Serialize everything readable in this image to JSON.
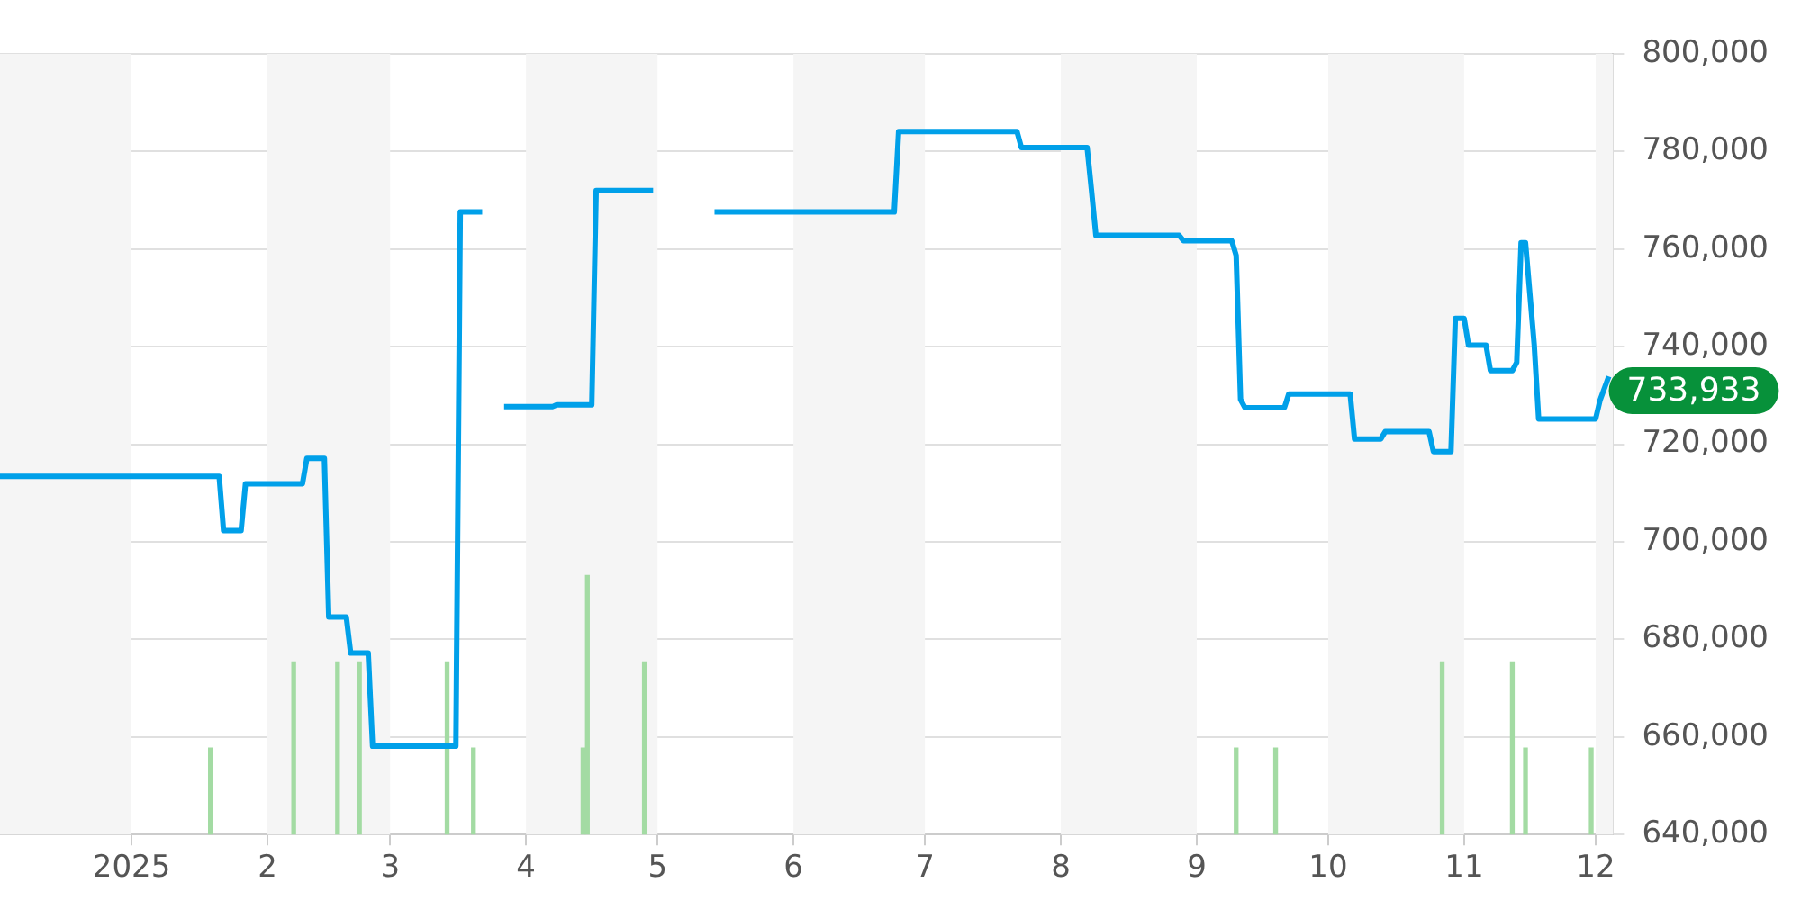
{
  "chart_data": {
    "type": "line",
    "x": [
      "2024-12-02",
      "2025-01-21",
      "2025-01-22",
      "2025-01-26",
      "2025-01-27",
      "2025-02-09",
      "2025-02-10",
      "2025-02-14",
      "2025-02-15",
      "2025-02-19",
      "2025-02-20",
      "2025-02-24",
      "2025-02-25",
      "2025-03-16",
      "2025-03-17",
      "2025-03-22",
      "2025-03-24",
      "2025-03-27",
      "2025-04-07",
      "2025-04-08",
      "2025-04-16",
      "2025-04-17",
      "2025-04-30",
      "2025-05-07",
      "2025-05-14",
      "2025-06-24",
      "2025-06-25",
      "2025-07-22",
      "2025-07-23",
      "2025-08-07",
      "2025-08-08",
      "2025-08-09",
      "2025-08-28",
      "2025-08-29",
      "2025-09-09",
      "2025-09-10",
      "2025-09-11",
      "2025-09-12",
      "2025-09-21",
      "2025-09-22",
      "2025-10-06",
      "2025-10-07",
      "2025-10-13",
      "2025-10-14",
      "2025-10-24",
      "2025-10-25",
      "2025-10-29",
      "2025-10-30",
      "2025-11-01",
      "2025-11-02",
      "2025-11-06",
      "2025-11-07",
      "2025-11-12",
      "2025-11-13",
      "2025-11-14",
      "2025-11-15",
      "2025-11-17",
      "2025-11-18",
      "2025-12-01",
      "2025-12-02",
      "2025-12-04"
    ],
    "series": [
      {
        "color": "#00a0e9",
        "values": [
          713400,
          713400,
          702300,
          702300,
          711900,
          711900,
          717100,
          717100,
          684600,
          684600,
          677200,
          677200,
          658100,
          658100,
          767600,
          767600,
          null,
          727700,
          727700,
          728100,
          728100,
          772000,
          772000,
          null,
          767600,
          767600,
          784100,
          784100,
          780800,
          780800,
          772000,
          762800,
          762800,
          761700,
          761700,
          758700,
          729200,
          727500,
          727500,
          730300,
          730300,
          721100,
          721100,
          722600,
          722600,
          718500,
          718500,
          745800,
          745800,
          740300,
          740300,
          735100,
          735100,
          736800,
          761300,
          761300,
          740300,
          725200,
          725200,
          729000,
          733900
        ]
      },
      {
        "type": "bar",
        "color": "#a3dba3",
        "x": [
          "2025-01-19",
          "2025-02-07",
          "2025-02-17",
          "2025-02-22",
          "2025-03-14",
          "2025-03-20",
          "2025-04-14",
          "2025-04-15",
          "2025-04-28",
          "2025-09-10",
          "2025-09-19",
          "2025-10-27",
          "2025-11-12",
          "2025-11-15",
          "2025-11-30"
        ],
        "values": [
          657700,
          675400,
          675400,
          675400,
          675400,
          657700,
          657700,
          693100,
          675400,
          657700,
          657700,
          675400,
          675400,
          657700,
          657700
        ]
      }
    ],
    "xlim": [
      "2024-12-02",
      "2025-12-05"
    ],
    "xticks": [
      {
        "value": "2025-01-01",
        "label": "2025"
      },
      {
        "value": "2025-02-01",
        "label": "2"
      },
      {
        "value": "2025-03-01",
        "label": "3"
      },
      {
        "value": "2025-04-01",
        "label": "4"
      },
      {
        "value": "2025-05-01",
        "label": "5"
      },
      {
        "value": "2025-06-01",
        "label": "6"
      },
      {
        "value": "2025-07-01",
        "label": "7"
      },
      {
        "value": "2025-08-01",
        "label": "8"
      },
      {
        "value": "2025-09-01",
        "label": "9"
      },
      {
        "value": "2025-10-01",
        "label": "10"
      },
      {
        "value": "2025-11-01",
        "label": "11"
      },
      {
        "value": "2025-12-01",
        "label": "12"
      }
    ],
    "ylim": [
      640000,
      800000
    ],
    "yticks": [
      {
        "value": 640000,
        "label": "640,000"
      },
      {
        "value": 660000,
        "label": "660,000"
      },
      {
        "value": 680000,
        "label": "680,000"
      },
      {
        "value": 700000,
        "label": "700,000"
      },
      {
        "value": 720000,
        "label": "720,000"
      },
      {
        "value": 740000,
        "label": "740,000"
      },
      {
        "value": 760000,
        "label": "760,000"
      },
      {
        "value": 780000,
        "label": "780,000"
      },
      {
        "value": 800000,
        "label": "800,000"
      }
    ],
    "bands": [
      {
        "axis": "x",
        "from": "2024-12-02",
        "to": "2025-01-01",
        "color": "#f5f5f5"
      },
      {
        "axis": "x",
        "from": "2025-02-01",
        "to": "2025-03-01",
        "color": "#f5f5f5"
      },
      {
        "axis": "x",
        "from": "2025-04-01",
        "to": "2025-05-01",
        "color": "#f5f5f5"
      },
      {
        "axis": "x",
        "from": "2025-06-01",
        "to": "2025-07-01",
        "color": "#f5f5f5"
      },
      {
        "axis": "x",
        "from": "2025-08-01",
        "to": "2025-09-01",
        "color": "#f5f5f5"
      },
      {
        "axis": "x",
        "from": "2025-10-01",
        "to": "2025-11-01",
        "color": "#f5f5f5"
      },
      {
        "axis": "x",
        "from": "2025-12-01",
        "to": "2025-12-05",
        "color": "#f5f5f5"
      }
    ],
    "annotations": [
      {
        "text": "733,933",
        "x": "2025-12-04",
        "y": 733933
      }
    ],
    "grid": "y",
    "legend": false,
    "marker": "none",
    "line_style": "solid"
  }
}
